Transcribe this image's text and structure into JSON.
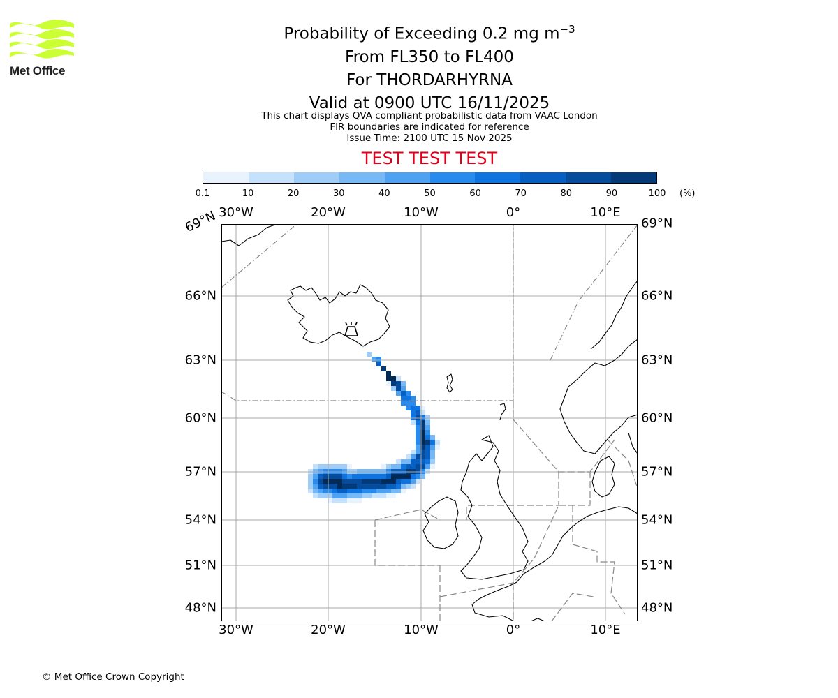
{
  "brand": {
    "name": "Met Office",
    "logo_color": "#ccff33"
  },
  "title": {
    "main_prefix": "Probability of Exceeding 0.2 mg m",
    "main_superscript": "−3",
    "levels": "From FL350 to FL400",
    "volcano": "For THORDARHYRNA",
    "valid": "Valid at 0900 UTC 16/11/2025"
  },
  "info": {
    "line1": "This chart displays QVA compliant probabilistic data from VAAC London",
    "line2": "FIR boundaries are indicated for reference",
    "line3": "Issue Time: 2100 UTC 15 Nov 2025"
  },
  "test_banner": {
    "text": "TEST TEST TEST",
    "color": "#e0001a"
  },
  "colorbar": {
    "ticks": [
      "0.1",
      "10",
      "20",
      "30",
      "40",
      "50",
      "60",
      "70",
      "80",
      "90",
      "100"
    ],
    "unit": "(%)",
    "colors": [
      "#e9f3fe",
      "#c6e1fb",
      "#a0cdf8",
      "#78b8f5",
      "#4fa1f2",
      "#2a8bef",
      "#0f73e0",
      "#085fc2",
      "#064c9c",
      "#043a78",
      "#022a56"
    ]
  },
  "map": {
    "lon_labels": [
      "30°W",
      "20°W",
      "10°W",
      "0°",
      "10°E"
    ],
    "lat_labels_left": [
      "66°N",
      "63°N",
      "60°N",
      "57°N",
      "54°N",
      "51°N",
      "48°N"
    ],
    "lat_labels_right": [
      "69°N",
      "66°N",
      "63°N",
      "60°N",
      "57°N",
      "54°N",
      "51°N",
      "48°N"
    ],
    "lat_label_diag": "69°N",
    "gridline_color": "#aaaaaa",
    "fir_color": "#888888",
    "coast_color": "#000000",
    "volcano_icon": "volcano-icon"
  },
  "footer": {
    "copyright": "© Met Office Crown Copyright"
  }
}
